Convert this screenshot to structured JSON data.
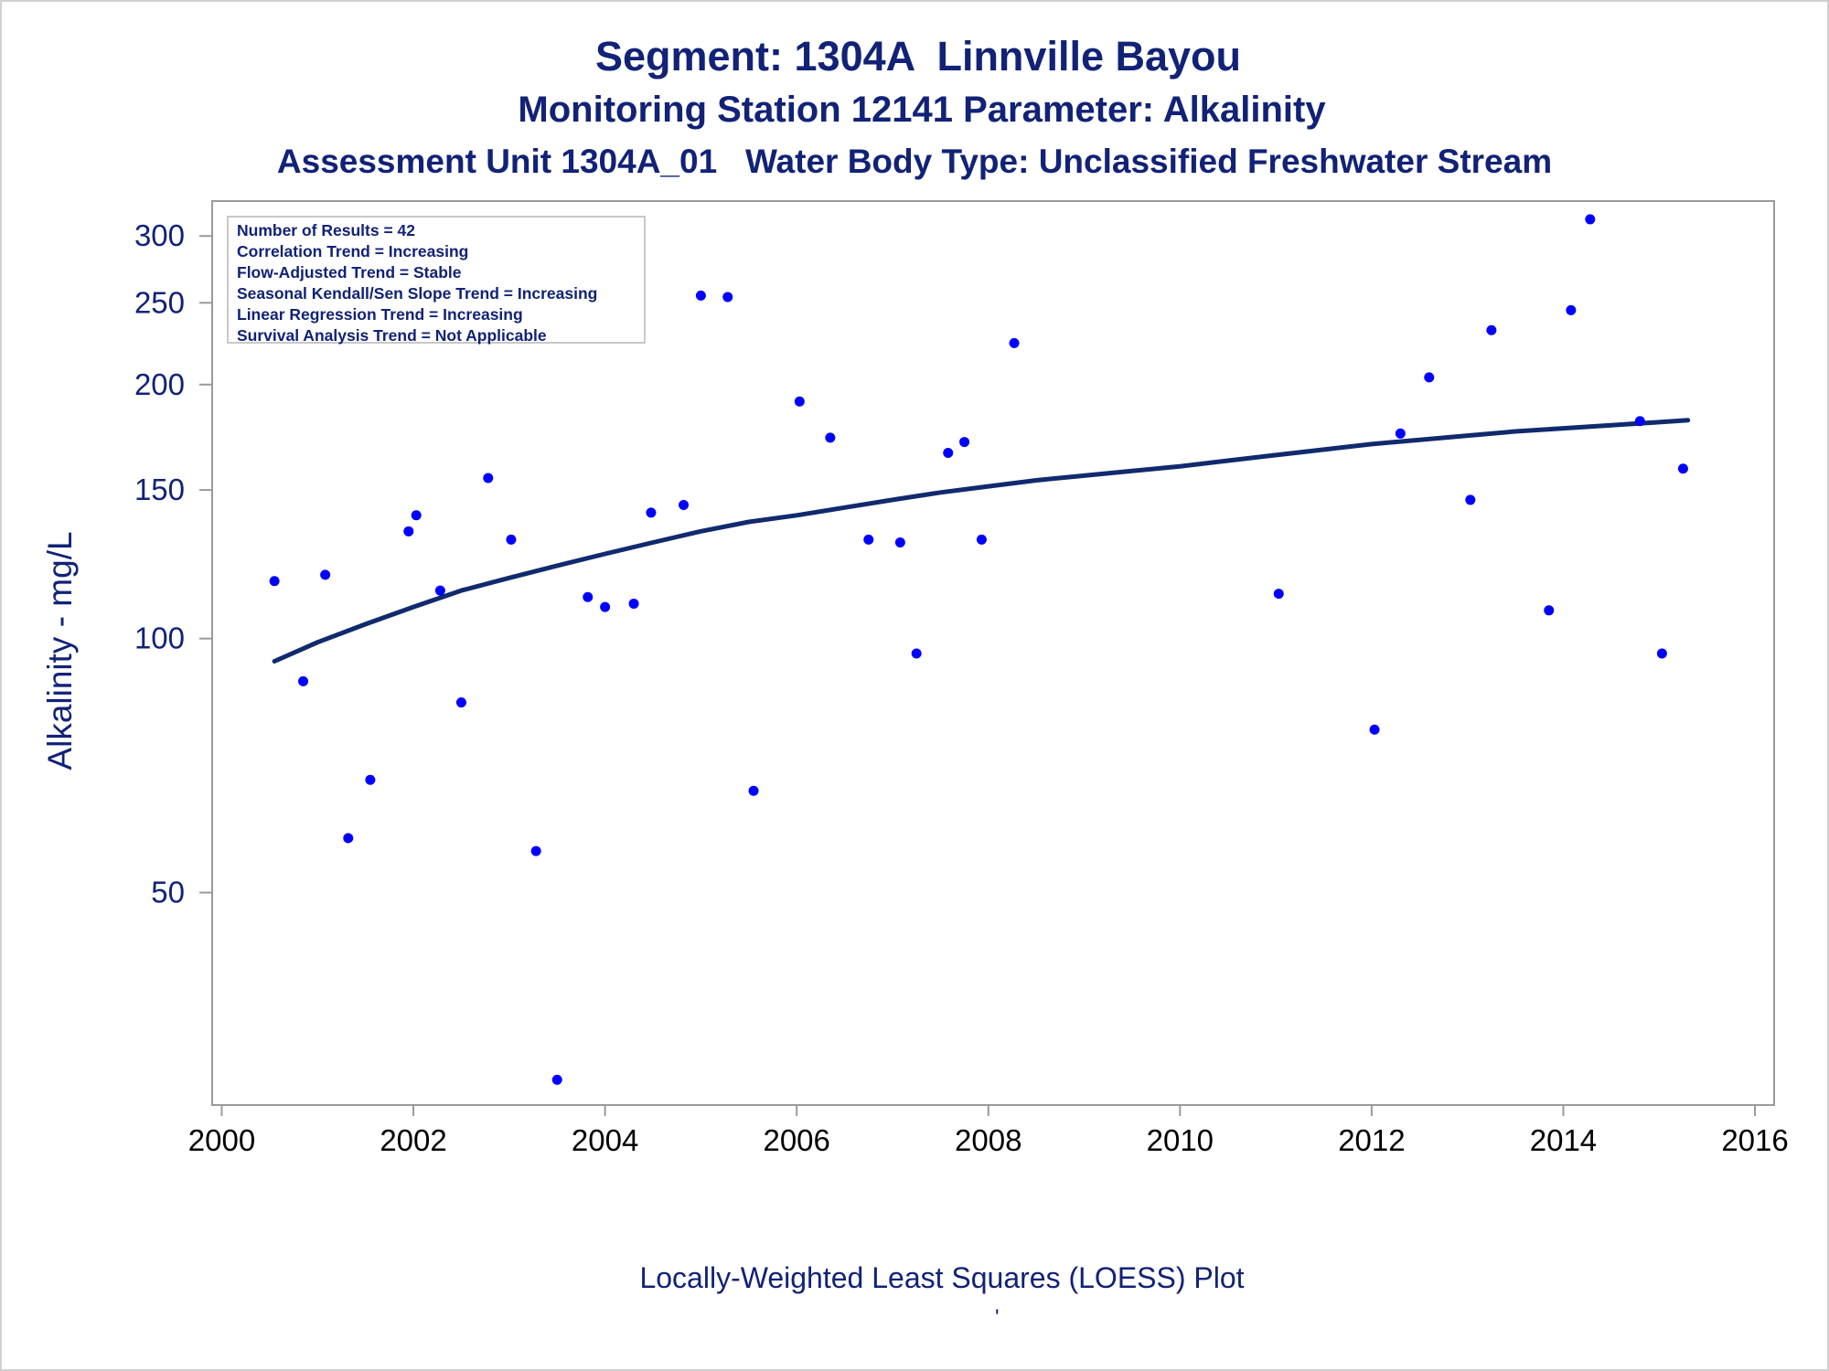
{
  "chart_data": {
    "type": "scatter",
    "title": "Segment: 1304A  Linnville Bayou",
    "subtitle": "Monitoring Station 12141 Parameter: Alkalinity",
    "subtitle2": "Assessment Unit 1304A_01   Water Body Type: Unclassified Freshwater Stream",
    "ylabel": "Alkalinity - mg/L",
    "xlabel": "",
    "footnote": "Locally-Weighted Least Squares (LOESS) Plot",
    "footmark": "'",
    "y_scale": "log",
    "xlim": [
      1999.9,
      2016.2
    ],
    "ylim": [
      28,
      330
    ],
    "x_ticks": [
      2000,
      2002,
      2004,
      2006,
      2008,
      2010,
      2012,
      2014,
      2016
    ],
    "y_ticks": [
      50,
      100,
      150,
      200,
      250,
      300
    ],
    "grid": false,
    "stats_box": {
      "placement": "top-left",
      "lines": [
        "Number of Results = 42",
        "Correlation Trend = Increasing",
        "Flow-Adjusted Trend = Stable",
        "Seasonal Kendall/Sen Slope Trend = Increasing",
        "Linear Regression Trend = Increasing",
        "Survival Analysis Trend = Not Applicable"
      ]
    },
    "colors": {
      "points": "#0000ff",
      "loess_line": "#112a6e",
      "text": "#112277",
      "axis": "#9a9a9a"
    },
    "series": [
      {
        "type": "scatter",
        "points": [
          [
            2000.55,
            117
          ],
          [
            2000.85,
            89
          ],
          [
            2001.08,
            119
          ],
          [
            2001.32,
            58
          ],
          [
            2001.55,
            68
          ],
          [
            2001.95,
            134
          ],
          [
            2002.03,
            140
          ],
          [
            2002.28,
            114
          ],
          [
            2002.5,
            84
          ],
          [
            2002.78,
            155
          ],
          [
            2003.02,
            131
          ],
          [
            2003.28,
            56
          ],
          [
            2003.5,
            30
          ],
          [
            2003.82,
            112
          ],
          [
            2004.0,
            109
          ],
          [
            2004.3,
            110
          ],
          [
            2004.48,
            141
          ],
          [
            2004.82,
            144
          ],
          [
            2005.0,
            255
          ],
          [
            2005.28,
            254
          ],
          [
            2005.55,
            66
          ],
          [
            2006.03,
            191
          ],
          [
            2006.35,
            173
          ],
          [
            2006.75,
            131
          ],
          [
            2007.08,
            130
          ],
          [
            2007.25,
            96
          ],
          [
            2007.58,
            166
          ],
          [
            2007.75,
            171
          ],
          [
            2007.93,
            131
          ],
          [
            2008.27,
            224
          ],
          [
            2011.03,
            113
          ],
          [
            2012.03,
            78
          ],
          [
            2012.3,
            175
          ],
          [
            2012.6,
            204
          ],
          [
            2013.03,
            146
          ],
          [
            2013.25,
            232
          ],
          [
            2013.85,
            108
          ],
          [
            2014.08,
            245
          ],
          [
            2014.28,
            314
          ],
          [
            2014.8,
            181
          ],
          [
            2015.03,
            96
          ],
          [
            2015.25,
            159
          ]
        ]
      },
      {
        "type": "line",
        "points": [
          [
            2000.55,
            94
          ],
          [
            2001.0,
            99
          ],
          [
            2001.5,
            104
          ],
          [
            2002.0,
            109
          ],
          [
            2002.5,
            114
          ],
          [
            2003.0,
            118
          ],
          [
            2003.5,
            122
          ],
          [
            2004.0,
            126
          ],
          [
            2004.5,
            130
          ],
          [
            2005.0,
            134
          ],
          [
            2005.5,
            137.5
          ],
          [
            2006.0,
            140
          ],
          [
            2006.5,
            143
          ],
          [
            2007.0,
            146
          ],
          [
            2007.5,
            149
          ],
          [
            2008.0,
            151.5
          ],
          [
            2008.5,
            154
          ],
          [
            2009.0,
            156
          ],
          [
            2009.5,
            158
          ],
          [
            2010.0,
            160
          ],
          [
            2010.5,
            162.5
          ],
          [
            2011.0,
            165
          ],
          [
            2011.5,
            167.5
          ],
          [
            2012.0,
            170
          ],
          [
            2012.5,
            172
          ],
          [
            2013.0,
            174
          ],
          [
            2013.5,
            176
          ],
          [
            2014.0,
            177.5
          ],
          [
            2014.5,
            179
          ],
          [
            2015.0,
            180.5
          ],
          [
            2015.3,
            181.5
          ]
        ]
      }
    ]
  }
}
